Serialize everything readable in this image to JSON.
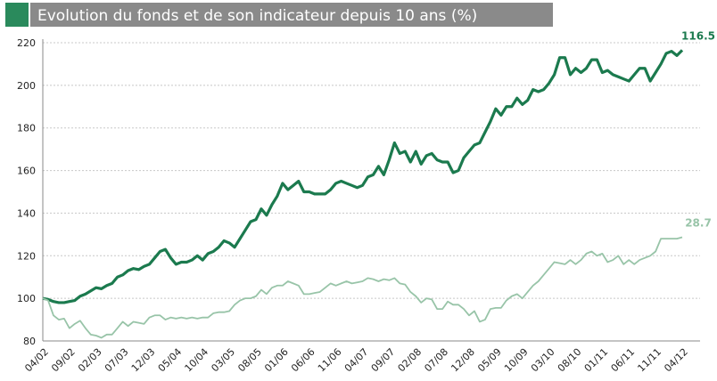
{
  "chart_data": {
    "type": "line",
    "title": "Evolution du fonds et de son indicateur depuis 10 ans (%)",
    "categories": [
      "04/02",
      null,
      null,
      null,
      null,
      "09/02",
      null,
      null,
      null,
      null,
      "02/03",
      null,
      null,
      null,
      null,
      "07/03",
      null,
      null,
      null,
      null,
      "12/03",
      null,
      null,
      null,
      null,
      "05/04",
      null,
      null,
      null,
      null,
      "10/04",
      null,
      null,
      null,
      null,
      "03/05",
      null,
      null,
      null,
      null,
      "08/05",
      null,
      null,
      null,
      null,
      "01/06",
      null,
      null,
      null,
      null,
      "06/06",
      null,
      null,
      null,
      null,
      "11/06",
      null,
      null,
      null,
      null,
      "04/07",
      null,
      null,
      null,
      null,
      "09/07",
      null,
      null,
      null,
      null,
      "02/08",
      null,
      null,
      null,
      null,
      "07/08",
      null,
      null,
      null,
      null,
      "12/08",
      null,
      null,
      null,
      null,
      "05/09",
      null,
      null,
      null,
      null,
      "10/09",
      null,
      null,
      null,
      null,
      "03/10",
      null,
      null,
      null,
      null,
      "08/10",
      null,
      null,
      null,
      null,
      "01/11",
      null,
      null,
      null,
      null,
      "06/11",
      null,
      null,
      null,
      null,
      "11/11",
      null,
      null,
      null,
      null,
      "04/12"
    ],
    "series": [
      {
        "color": "#1b7a4e",
        "width": 3.2,
        "end_label": "116.5",
        "values": [
          100,
          99.5,
          98.5,
          98,
          98,
          98.5,
          99,
          101,
          102,
          103.5,
          105,
          104.5,
          106,
          107,
          110,
          111,
          113,
          114,
          113.5,
          115,
          116,
          119,
          122,
          123,
          119,
          116,
          117,
          117,
          118,
          120,
          118,
          121,
          122,
          124,
          127,
          126,
          124,
          128,
          132,
          136,
          137,
          142,
          139,
          144,
          148,
          154,
          151,
          153,
          155,
          150,
          150,
          149,
          149,
          149,
          151,
          154,
          155,
          154,
          153,
          152,
          153,
          157,
          158,
          162,
          158,
          165,
          173,
          168,
          169,
          164,
          169,
          163,
          167,
          168,
          165,
          164,
          164,
          159,
          160,
          166,
          169,
          172,
          173,
          178,
          183,
          189,
          186,
          190,
          190,
          194,
          191,
          193,
          198,
          197,
          198,
          201,
          205,
          213,
          213,
          205,
          208,
          206,
          208,
          212,
          212,
          206,
          207,
          205,
          204,
          203,
          202,
          205,
          208,
          208,
          202,
          206,
          210,
          215,
          216,
          214,
          216.5
        ]
      },
      {
        "color": "#98c4a8",
        "width": 1.8,
        "end_label": "28.7",
        "values": [
          100,
          99,
          92,
          90,
          90.5,
          86,
          88,
          89.5,
          86,
          83,
          82.5,
          81.5,
          83,
          83,
          86,
          89,
          87,
          89,
          88.5,
          88,
          91,
          92,
          92,
          90,
          91,
          90.5,
          91,
          90.5,
          91,
          90.5,
          91,
          91,
          93,
          93.5,
          93.5,
          94,
          97,
          99,
          100,
          100,
          101,
          104,
          102,
          105,
          106,
          106,
          108,
          107,
          106,
          102,
          102,
          102.5,
          103,
          105,
          107,
          106,
          107,
          108,
          107,
          107.5,
          108,
          109.5,
          109,
          108,
          109,
          108.5,
          109.5,
          107,
          106.5,
          103,
          101,
          98,
          100,
          99.5,
          95,
          95,
          98.5,
          97,
          97,
          95,
          92,
          94,
          89,
          90,
          95,
          95.5,
          95.5,
          99,
          101,
          102,
          100,
          103,
          106,
          108,
          111,
          114,
          117,
          116.5,
          116,
          118,
          116,
          118,
          121,
          122,
          120,
          121,
          117,
          118,
          120,
          116,
          118,
          116,
          118,
          119,
          120,
          122,
          128,
          128,
          128,
          128,
          128.7
        ]
      }
    ],
    "ylim": [
      80,
      220
    ],
    "yticks": [
      80,
      100,
      120,
      140,
      160,
      180,
      200,
      220
    ],
    "grid": true
  }
}
